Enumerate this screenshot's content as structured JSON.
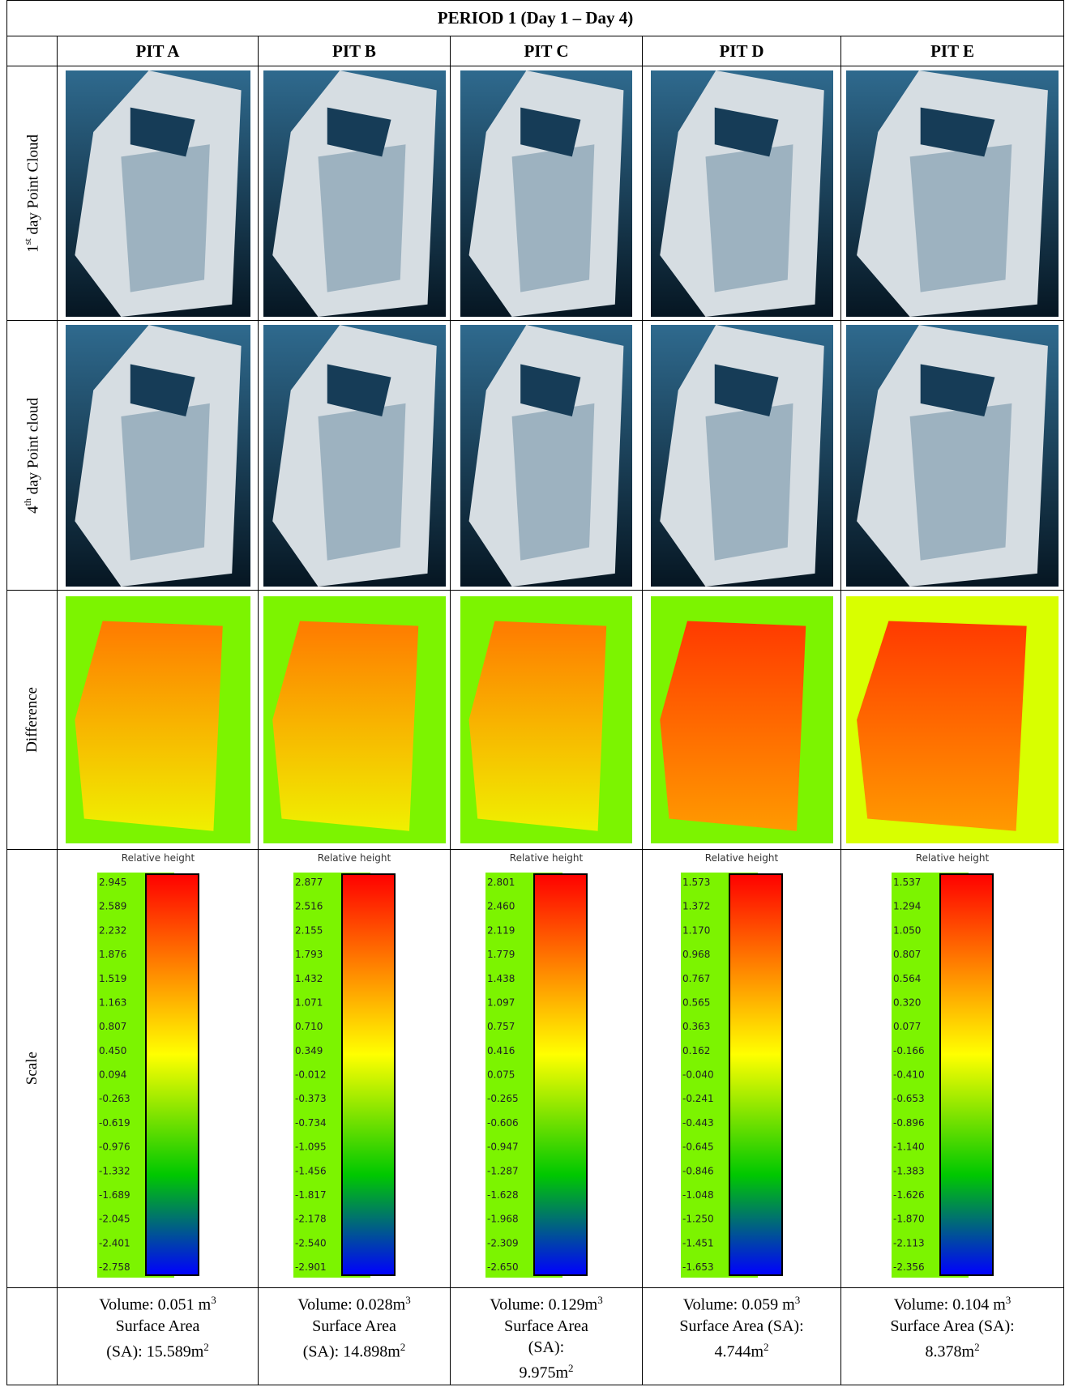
{
  "title": "PERIOD 1 (Day 1 – Day 4)",
  "pits": [
    "PIT A",
    "PIT B",
    "PIT C",
    "PIT D",
    "PIT E"
  ],
  "row_labels": [
    {
      "text": "1",
      "sup": "st",
      "rest": " day Point Cloud"
    },
    {
      "text": "4",
      "sup": "th",
      "rest": " day Point cloud"
    },
    {
      "text": "Difference"
    },
    {
      "text": "Scale"
    }
  ],
  "scales": [
    {
      "title": "Relative height",
      "ticks": [
        "2.945",
        "2.589",
        "2.232",
        "1.876",
        "1.519",
        "1.163",
        "0.807",
        "0.450",
        "0.094",
        "-0.263",
        "-0.619",
        "-0.976",
        "-1.332",
        "-1.689",
        "-2.045",
        "-2.401",
        "-2.758"
      ]
    },
    {
      "title": "Relative height",
      "ticks": [
        "2.877",
        "2.516",
        "2.155",
        "1.793",
        "1.432",
        "1.071",
        "0.710",
        "0.349",
        "-0.012",
        "-0.373",
        "-0.734",
        "-1.095",
        "-1.456",
        "-1.817",
        "-2.178",
        "-2.540",
        "-2.901"
      ]
    },
    {
      "title": "Relative height",
      "ticks": [
        "2.801",
        "2.460",
        "2.119",
        "1.779",
        "1.438",
        "1.097",
        "0.757",
        "0.416",
        "0.075",
        "-0.265",
        "-0.606",
        "-0.947",
        "-1.287",
        "-1.628",
        "-1.968",
        "-2.309",
        "-2.650"
      ]
    },
    {
      "title": "Relative height",
      "ticks": [
        "1.573",
        "1.372",
        "1.170",
        "0.968",
        "0.767",
        "0.565",
        "0.363",
        "0.162",
        "-0.040",
        "-0.241",
        "-0.443",
        "-0.645",
        "-0.846",
        "-1.048",
        "-1.250",
        "-1.451",
        "-1.653"
      ]
    },
    {
      "title": "Relative height",
      "ticks": [
        "1.537",
        "1.294",
        "1.050",
        "0.807",
        "0.564",
        "0.320",
        "0.077",
        "-0.166",
        "-0.410",
        "-0.653",
        "-0.896",
        "-1.140",
        "-1.383",
        "-1.626",
        "-1.870",
        "-2.113",
        "-2.356"
      ]
    }
  ],
  "results": [
    {
      "volume": "Volume: 0.051 m",
      "volume_sup": "3",
      "sa_lines": [
        "Surface Area",
        "(SA): 15.589m"
      ],
      "sa_sup": "2"
    },
    {
      "volume": "Volume: 0.028m",
      "volume_sup": "3",
      "sa_lines": [
        "Surface Area",
        "(SA): 14.898m"
      ],
      "sa_sup": "2"
    },
    {
      "volume": "Volume: 0.129m",
      "volume_sup": "3",
      "sa_lines": [
        "Surface Area",
        "(SA):",
        "9.975m"
      ],
      "sa_sup": "2"
    },
    {
      "volume": "Volume: 0.059 m",
      "volume_sup": "3",
      "sa_lines": [
        "Surface Area (SA):",
        "4.744m"
      ],
      "sa_sup": "2"
    },
    {
      "volume": "Volume: 0.104 m",
      "volume_sup": "3",
      "sa_lines": [
        "Surface Area (SA):",
        "8.378m"
      ],
      "sa_sup": "2"
    }
  ]
}
